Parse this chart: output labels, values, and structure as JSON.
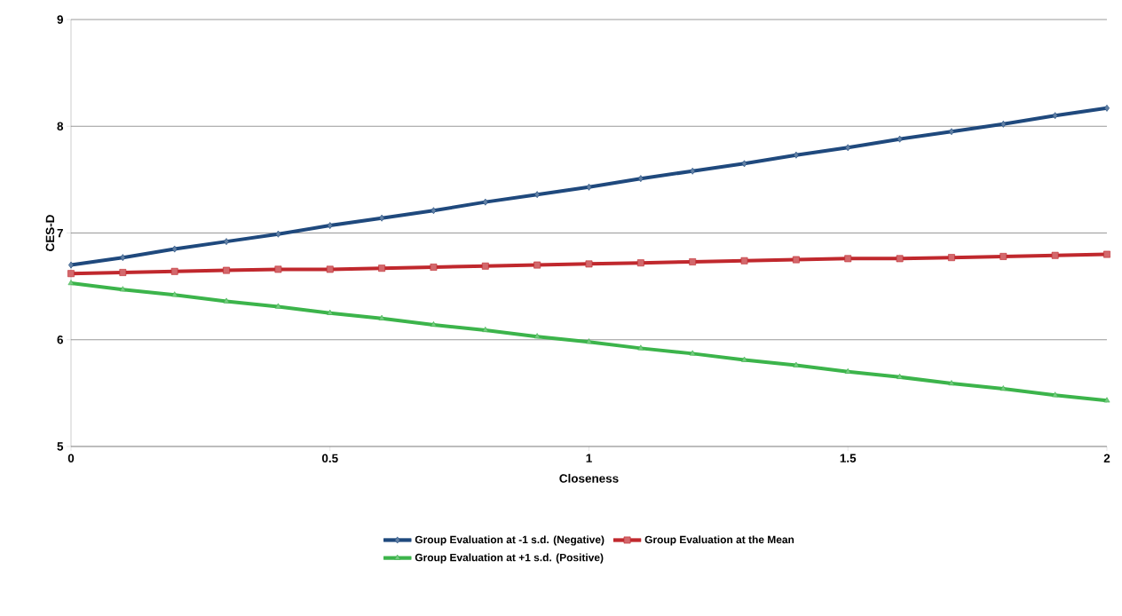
{
  "chart_data": {
    "type": "line",
    "xlabel": "Closeness",
    "ylabel": "CES-D",
    "x": [
      0,
      0.1,
      0.2,
      0.3,
      0.4,
      0.5,
      0.6,
      0.7,
      0.8,
      0.9,
      1,
      1.1,
      1.2,
      1.3,
      1.4,
      1.5,
      1.6,
      1.7,
      1.8,
      1.9,
      2
    ],
    "series": [
      {
        "name": "Group Evaluation at -1 s.d. (Negative)",
        "color": "#1f497d",
        "marker": "diamond",
        "values": [
          6.7,
          6.77,
          6.85,
          6.92,
          6.99,
          7.07,
          7.14,
          7.21,
          7.29,
          7.36,
          7.43,
          7.51,
          7.58,
          7.65,
          7.73,
          7.8,
          7.88,
          7.95,
          8.02,
          8.1,
          8.17
        ]
      },
      {
        "name": "Group Evaluation at the Mean",
        "color": "#c0282d",
        "marker": "square",
        "values": [
          6.62,
          6.63,
          6.64,
          6.65,
          6.66,
          6.66,
          6.67,
          6.68,
          6.69,
          6.7,
          6.71,
          6.72,
          6.73,
          6.74,
          6.75,
          6.76,
          6.76,
          6.77,
          6.78,
          6.79,
          6.8
        ]
      },
      {
        "name": "Group Evaluation at +1 s.d. (Positive)",
        "color": "#3cb44b",
        "marker": "triangle",
        "values": [
          6.53,
          6.47,
          6.42,
          6.36,
          6.31,
          6.25,
          6.2,
          6.14,
          6.09,
          6.03,
          5.98,
          5.92,
          5.87,
          5.81,
          5.76,
          5.7,
          5.65,
          5.59,
          5.54,
          5.48,
          5.43
        ]
      }
    ],
    "xlim": [
      0,
      2
    ],
    "xticks": [
      0,
      0.5,
      1,
      1.5,
      2
    ],
    "ylim": [
      5,
      9
    ],
    "yticks": [
      5,
      6,
      7,
      8,
      9
    ],
    "grid": "y",
    "legend": "bottom",
    "line_style": "solid"
  }
}
